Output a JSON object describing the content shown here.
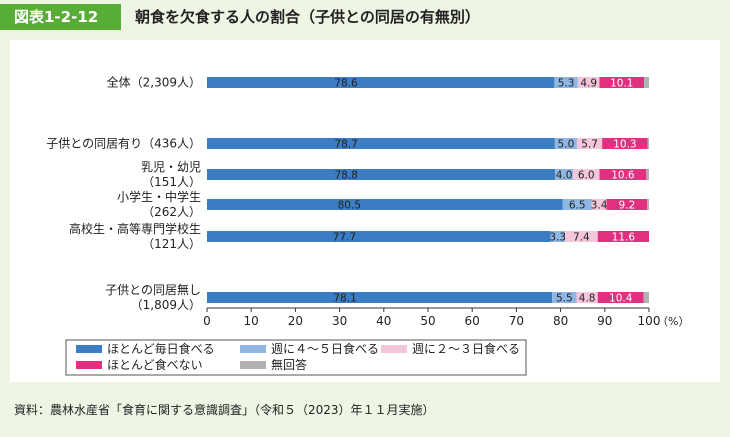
{
  "header": {
    "badge": "図表1-2-12",
    "title": "朝食を欠食する人の割合（子供との同居の有無別）"
  },
  "source": "資料：農林水産省「食育に関する意識調査」（令和５（2023）年１１月実施）",
  "chart_data": {
    "type": "bar",
    "orientation": "horizontal",
    "stacked": true,
    "categories": [
      [
        "全体（2,309人）"
      ],
      [
        "子供との同居有り（436人）"
      ],
      [
        "乳児・幼児",
        "（151人）"
      ],
      [
        "小学生・中学生",
        "（262人）"
      ],
      [
        "高校生・高等専門学校生",
        "（121人）"
      ],
      [
        "子供との同居無し",
        "（1,809人）"
      ]
    ],
    "series": [
      {
        "name": "ほとんど毎日食べる",
        "color": "#3b7dc4",
        "values": [
          78.6,
          78.7,
          78.8,
          80.5,
          77.7,
          78.1
        ]
      },
      {
        "name": "週に４～５日食べる",
        "color": "#8fb7e3",
        "values": [
          5.3,
          5.0,
          4.0,
          6.5,
          3.3,
          5.5
        ]
      },
      {
        "name": "週に２～３日食べる",
        "color": "#f4c6dc",
        "values": [
          4.9,
          5.7,
          6.0,
          3.4,
          7.4,
          4.8
        ]
      },
      {
        "name": "ほとんど食べない",
        "color": "#e0307f",
        "values": [
          10.1,
          10.3,
          10.6,
          9.2,
          11.6,
          10.4
        ]
      },
      {
        "name": "無回答",
        "color": "#b2b2b2",
        "values": [
          1.1,
          0.3,
          0.6,
          0.4,
          0.0,
          1.2
        ]
      }
    ],
    "xlim": [
      0,
      100
    ],
    "xticks": [
      0,
      10,
      20,
      30,
      40,
      50,
      60,
      70,
      80,
      90,
      100
    ],
    "xunit": "（%）",
    "legend_position": "bottom-left"
  }
}
